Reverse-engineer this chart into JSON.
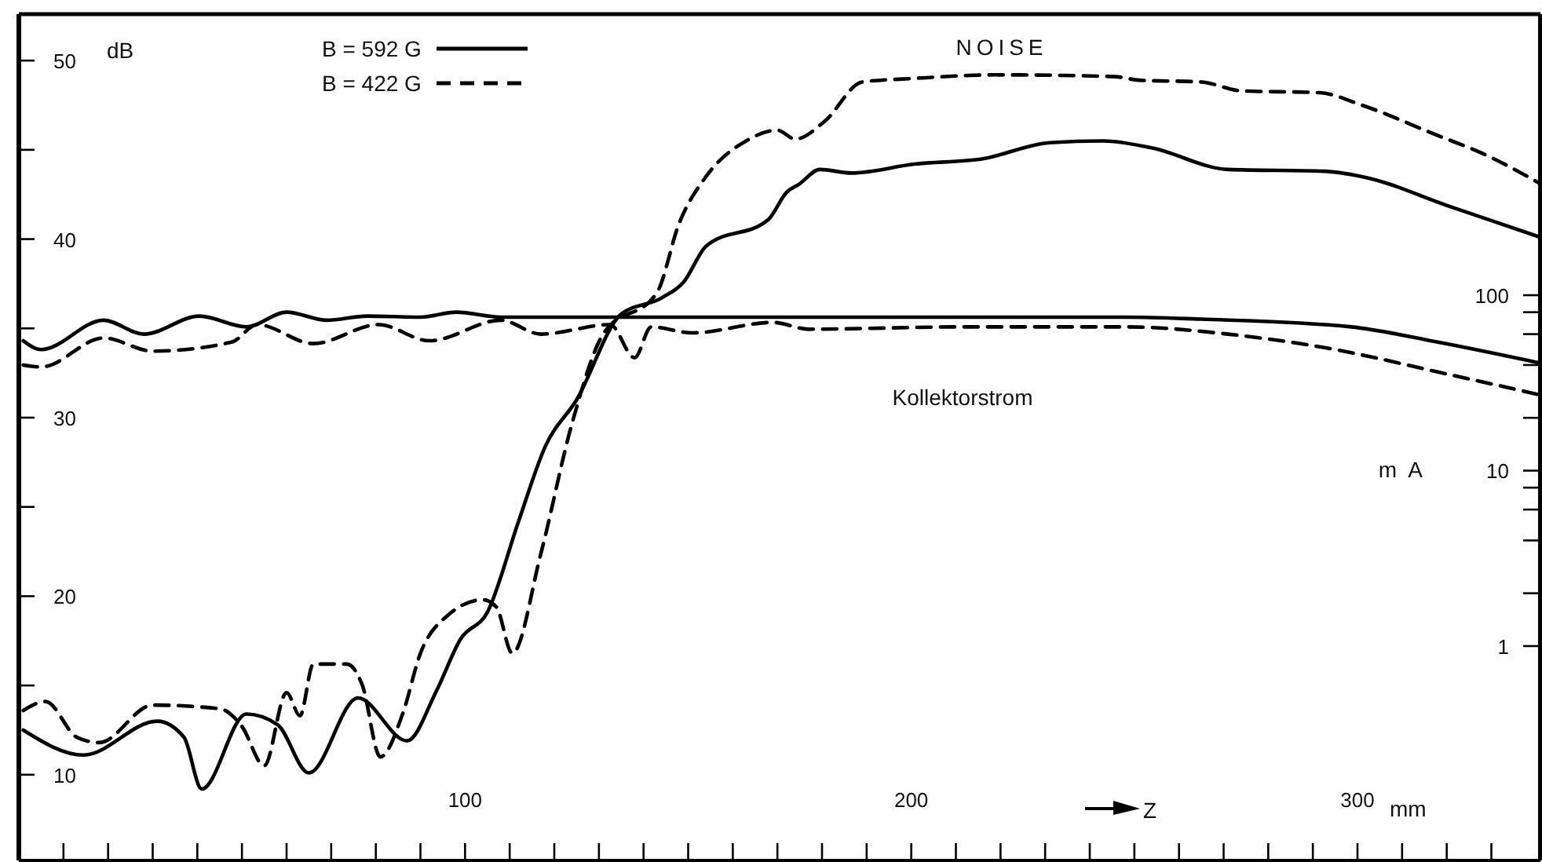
{
  "chart_data": {
    "type": "line",
    "ylabel": "dB",
    "y2label": "m A",
    "xlabel": "mm",
    "annotations": [
      "NOISE",
      "Kollektorstrom",
      "Z"
    ],
    "xlim": [
      0,
      341
    ],
    "ylim": [
      5.2,
      52.6
    ],
    "y2lim": [
      0.06,
      4000
    ],
    "log": "y2",
    "xticks": [
      {
        "value": 10,
        "label": null
      },
      {
        "value": 20,
        "label": null
      },
      {
        "value": 30,
        "label": null
      },
      {
        "value": 40,
        "label": null
      },
      {
        "value": 50,
        "label": null
      },
      {
        "value": 60,
        "label": null
      },
      {
        "value": 70,
        "label": null
      },
      {
        "value": 80,
        "label": null
      },
      {
        "value": 90,
        "label": null
      },
      100,
      {
        "value": 110,
        "label": null
      },
      {
        "value": 120,
        "label": null
      },
      {
        "value": 130,
        "label": null
      },
      {
        "value": 140,
        "label": null
      },
      {
        "value": 150,
        "label": null
      },
      {
        "value": 160,
        "label": null
      },
      {
        "value": 170,
        "label": null
      },
      {
        "value": 180,
        "label": null
      },
      {
        "value": 190,
        "label": null
      },
      200,
      {
        "value": 210,
        "label": null
      },
      {
        "value": 220,
        "label": null
      },
      {
        "value": 230,
        "label": null
      },
      {
        "value": 240,
        "label": null
      },
      {
        "value": 250,
        "label": null
      },
      {
        "value": 260,
        "label": null
      },
      {
        "value": 270,
        "label": null
      },
      {
        "value": 280,
        "label": null
      },
      {
        "value": 290,
        "label": null
      },
      300,
      {
        "value": 310,
        "label": null
      },
      {
        "value": 320,
        "label": null
      },
      {
        "value": 330,
        "label": null
      }
    ],
    "yticks": [
      10,
      {
        "value": 15,
        "label": null
      },
      20,
      {
        "value": 25,
        "label": null
      },
      30,
      {
        "value": 35,
        "label": null
      },
      40,
      {
        "value": 45,
        "label": null
      },
      50
    ],
    "y2ticks": [
      1,
      {
        "value": 2,
        "label": null
      },
      {
        "value": 4,
        "label": null
      },
      {
        "value": 6,
        "label": null
      },
      {
        "value": 8,
        "label": null
      },
      10,
      {
        "value": 20,
        "label": null
      },
      {
        "value": 40,
        "label": null
      },
      {
        "value": 60,
        "label": null
      },
      {
        "value": 80,
        "label": null
      },
      100
    ],
    "grid": false,
    "legend": "top",
    "marker": "none",
    "series": [
      {
        "name": "B = 592 G",
        "color": "#000000",
        "line_style": "solid",
        "x": [
          1,
          14.5,
          31,
          37,
          41,
          51,
          58,
          65,
          76,
          87,
          93.6,
          99,
          105,
          112,
          118,
          125,
          135,
          144,
          149,
          154,
          168,
          172,
          175,
          179.5,
          186.6,
          200.7,
          216,
          231,
          243,
          254,
          271,
          292.6,
          301,
          321,
          341
        ],
        "values": [
          12.5,
          11.1,
          13.0,
          12.1,
          9.2,
          13.4,
          12.8,
          10.1,
          14.3,
          11.9,
          14.7,
          17.6,
          19.1,
          24.2,
          28.4,
          31.0,
          35.8,
          36.7,
          37.6,
          39.6,
          41.1,
          42.6,
          43.1,
          43.9,
          43.7,
          44.2,
          44.5,
          45.4,
          45.5,
          45.1,
          43.9,
          43.8,
          43.5,
          41.8,
          40.1
        ]
      },
      {
        "name": "B = 422 G",
        "color": "#000000",
        "line_style": "dashed",
        "x": [
          1,
          6,
          13,
          18,
          30,
          45,
          50,
          55,
          60,
          63,
          66,
          73.5,
          77,
          81,
          86,
          90,
          96,
          104,
          107,
          110.6,
          117,
          124,
          131,
          143,
          148,
          154,
          163,
          170,
          174,
          180.6,
          189,
          200.7,
          219,
          245.6,
          251,
          265,
          274,
          291.5,
          301,
          318,
          328,
          341
        ],
        "values": [
          13.6,
          14.1,
          12.1,
          11.8,
          13.9,
          13.7,
          12.7,
          10.5,
          14.6,
          13.3,
          16.2,
          16.2,
          15.0,
          11.0,
          13.4,
          16.8,
          18.9,
          19.8,
          19.4,
          16.8,
          22.4,
          29.7,
          34.7,
          37.0,
          40.9,
          43.5,
          45.5,
          46.1,
          45.6,
          46.6,
          48.8,
          49.0,
          49.2,
          49.1,
          48.9,
          48.8,
          48.3,
          48.2,
          47.5,
          45.8,
          44.8,
          43.1
        ]
      },
      {
        "color": "#000000",
        "line_style": "solid",
        "axis": "y2",
        "x": [
          1,
          5,
          19,
          28,
          40.5,
          51,
          60,
          69,
          78,
          90,
          98,
          108,
          172,
          248,
          265,
          298.6,
          318,
          341
        ],
        "values": [
          55,
          49,
          72,
          60,
          76,
          66,
          80,
          72,
          76,
          75,
          80,
          75,
          75,
          75,
          73,
          66,
          54,
          41
        ]
      },
      {
        "color": "#000000",
        "line_style": "dashed",
        "axis": "y2",
        "x": [
          1,
          5,
          19,
          30,
          47.7,
          53.4,
          66,
          80.6,
          92,
          108,
          117,
          132.5,
          138,
          141.7,
          151,
          169,
          177,
          212,
          248,
          271,
          295,
          318,
          341
        ],
        "values": [
          40,
          39,
          57,
          48,
          54,
          68,
          53,
          68,
          55,
          72,
          60,
          68,
          44,
          66,
          61,
          70,
          64,
          66,
          66,
          60,
          49,
          36.5,
          27
        ]
      }
    ]
  }
}
